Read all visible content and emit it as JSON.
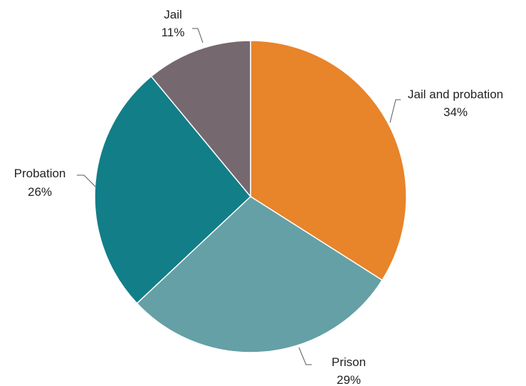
{
  "chart_data": {
    "type": "pie",
    "title": "",
    "slices": [
      {
        "label": "Jail and probation",
        "pct_label": "34%",
        "value": 34,
        "color": "#E8842A"
      },
      {
        "label": "Prison",
        "pct_label": "29%",
        "value": 29,
        "color": "#64A0A6"
      },
      {
        "label": "Probation",
        "pct_label": "26%",
        "value": 26,
        "color": "#127E88"
      },
      {
        "label": "Jail",
        "pct_label": "11%",
        "value": 11,
        "color": "#75686F"
      }
    ],
    "start_angle": "12 o'clock",
    "direction": "clockwise",
    "legend": "none",
    "label_style": "outside with leader lines"
  }
}
